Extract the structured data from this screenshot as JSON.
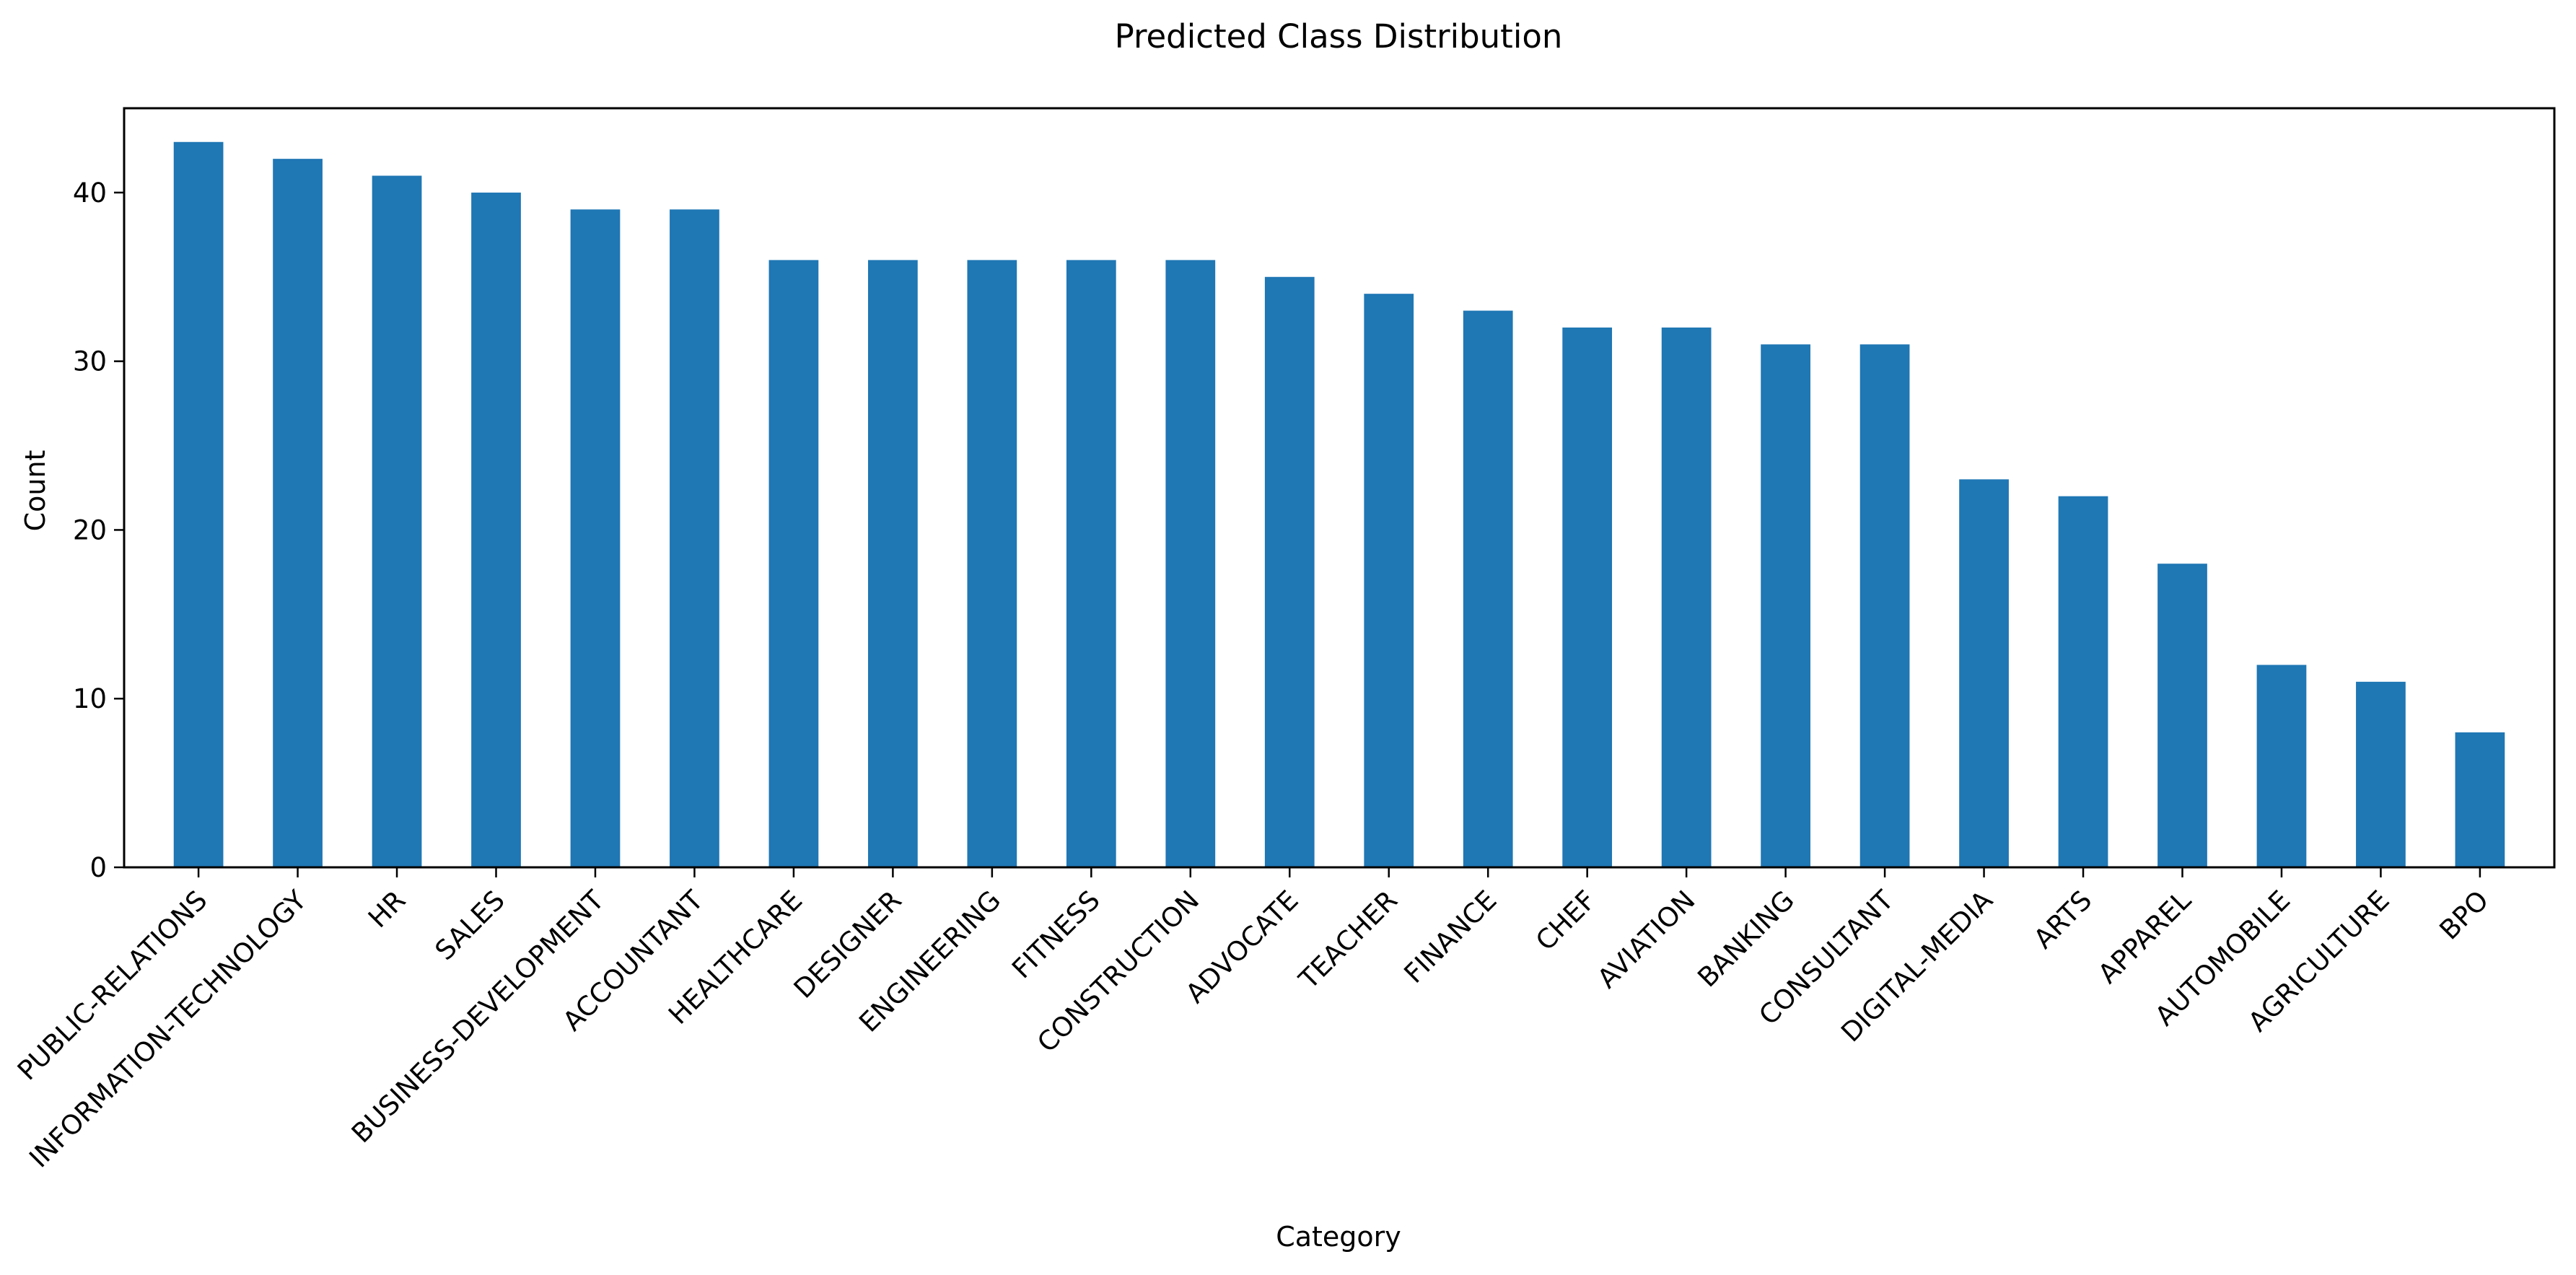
{
  "colors": {
    "bar": "#1f77b4"
  },
  "chart_data": {
    "type": "bar",
    "title": "Predicted Class Distribution",
    "xlabel": "Category",
    "ylabel": "Count",
    "ylim": [
      0,
      45
    ],
    "yticks": [
      0,
      10,
      20,
      30,
      40
    ],
    "legend": "none",
    "grid": false,
    "categories": [
      "PUBLIC-RELATIONS",
      "INFORMATION-TECHNOLOGY",
      "HR",
      "SALES",
      "BUSINESS-DEVELOPMENT",
      "ACCOUNTANT",
      "HEALTHCARE",
      "DESIGNER",
      "ENGINEERING",
      "FITNESS",
      "CONSTRUCTION",
      "ADVOCATE",
      "TEACHER",
      "FINANCE",
      "CHEF",
      "AVIATION",
      "BANKING",
      "CONSULTANT",
      "DIGITAL-MEDIA",
      "ARTS",
      "APPAREL",
      "AUTOMOBILE",
      "AGRICULTURE",
      "BPO"
    ],
    "values": [
      43,
      42,
      41,
      40,
      39,
      39,
      36,
      36,
      36,
      36,
      36,
      35,
      34,
      33,
      32,
      32,
      31,
      31,
      23,
      22,
      18,
      12,
      11,
      8
    ]
  }
}
